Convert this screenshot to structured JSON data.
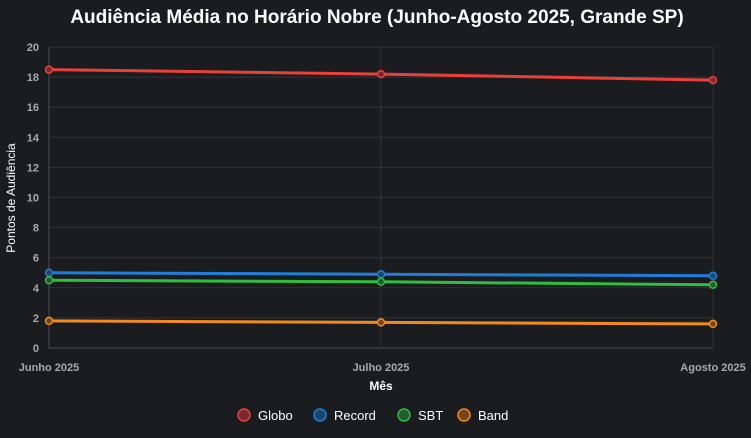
{
  "chart_data": {
    "type": "line",
    "title": "Audiência Média no Horário Nobre (Junho-Agosto 2025, Grande SP)",
    "xlabel": "Mês",
    "ylabel": "Pontos de Audiência",
    "categories": [
      "Junho 2025",
      "Julho 2025",
      "Agosto 2025"
    ],
    "ylim": [
      0,
      20
    ],
    "yticks": [
      "0",
      "2",
      "4",
      "6",
      "8",
      "10",
      "12",
      "14",
      "16",
      "18",
      "20"
    ],
    "grid": true,
    "legend_position": "bottom",
    "series": [
      {
        "name": "Globo",
        "values": [
          18.5,
          18.2,
          17.8
        ],
        "color": "#e8413c",
        "fill": "#7a2a2a"
      },
      {
        "name": "Record",
        "values": [
          5.0,
          4.9,
          4.8
        ],
        "color": "#1f7fd8",
        "fill": "#1e4470"
      },
      {
        "name": "SBT",
        "values": [
          4.5,
          4.4,
          4.2
        ],
        "color": "#2fbf3f",
        "fill": "#275a2c"
      },
      {
        "name": "Band",
        "values": [
          1.8,
          1.7,
          1.6
        ],
        "color": "#f28a1e",
        "fill": "#74461c"
      }
    ]
  }
}
